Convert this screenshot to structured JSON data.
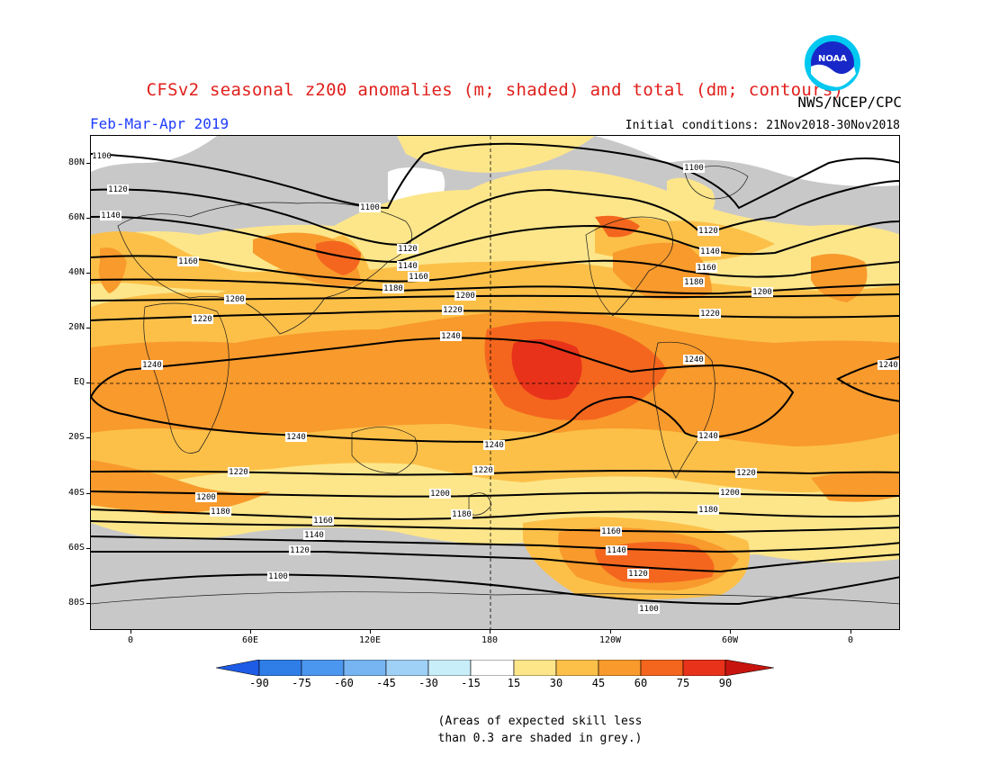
{
  "title": "CFSv2 seasonal z200 anomalies (m; shaded) and total (dm; contours)",
  "agency": "NWS/NCEP/CPC",
  "period": "Feb-Mar-Apr 2019",
  "initial_conditions": "Initial conditions: 21Nov2018-30Nov2018",
  "logo_text": "NOAA",
  "lat_labels": [
    "80N",
    "60N",
    "40N",
    "20N",
    "EQ",
    "20S",
    "40S",
    "60S",
    "80S"
  ],
  "lon_labels": [
    "0",
    "60E",
    "120E",
    "180",
    "120W",
    "60W",
    "0"
  ],
  "colorbar": {
    "labels": [
      "-90",
      "-75",
      "-60",
      "-45",
      "-30",
      "-15",
      "15",
      "30",
      "45",
      "60",
      "75",
      "90"
    ],
    "colors": [
      "#1e5ce6",
      "#2f7ee8",
      "#4b96ee",
      "#77b4f2",
      "#9fd0f6",
      "#c8eefa",
      "#ffffff",
      "#fde68a",
      "#fcc049",
      "#f89a2c",
      "#f4661e",
      "#e8321a",
      "#c8140e"
    ]
  },
  "shading_colors": {
    "skill_grey": "#c8c8c8",
    "c15_30": "#fde68a",
    "c30_45": "#fcc049",
    "c45_60": "#f89a2c",
    "c60_75": "#f4661e",
    "c75_90": "#e8321a"
  },
  "contour_labels": [
    "1100",
    "1120",
    "1140",
    "1160",
    "1180",
    "1200",
    "1220",
    "1240"
  ],
  "note": {
    "line1": "(Areas of expected skill less",
    "line2": "than 0.3 are shaded in grey.)"
  }
}
